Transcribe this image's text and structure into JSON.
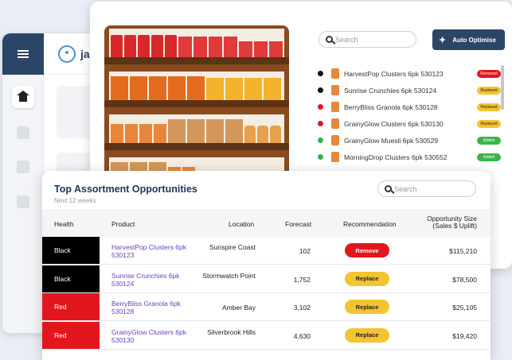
{
  "background_app": {
    "brand": "jal"
  },
  "shelf_panel": {
    "search_placeholder": "Search",
    "auto_optimise_label": "Auto Optimise",
    "products": [
      {
        "name": "HarvestPop Clusters 6pk 530123",
        "status_color": "#111111",
        "tag": "Removed",
        "tag_color": "#e3161d",
        "tag_text_color": "#ffffff"
      },
      {
        "name": "Sunrise Crunchies 6pk 530124",
        "status_color": "#111111",
        "tag": "Replaced",
        "tag_color": "#f4c430",
        "tag_text_color": "#222222"
      },
      {
        "name": "BerryBliss Granola 6pk 530128",
        "status_color": "#e3161d",
        "tag": "Replaced",
        "tag_color": "#f4c430",
        "tag_text_color": "#222222"
      },
      {
        "name": "GrainyGlow Clusters 6pk 530130",
        "status_color": "#e3161d",
        "tag": "Replaced",
        "tag_color": "#f4c430",
        "tag_text_color": "#222222"
      },
      {
        "name": "GrainyGlow Muesli 6pk 530529",
        "status_color": "#2fb44a",
        "tag": "Added",
        "tag_color": "#39b54a",
        "tag_text_color": "#ffffff"
      },
      {
        "name": "MorningDrop Clusters 6pk 530552",
        "status_color": "#2fb44a",
        "tag": "Added",
        "tag_color": "#39b54a",
        "tag_text_color": "#ffffff"
      }
    ]
  },
  "opportunities": {
    "title": "Top Assortment Opportunities",
    "subtitle": "Next 12 weeks",
    "search_placeholder": "Search",
    "columns": {
      "health": "Health",
      "product": "Product",
      "location": "Location",
      "forecast": "Forecast",
      "recommendation": "Recommendation",
      "opportunity_l1": "Opportunity Size",
      "opportunity_l2": "(Sales $ Uplift)"
    },
    "rows": [
      {
        "health": "Black",
        "health_color": "#000000",
        "product": "HarvestPop Clusters 6pk 530123",
        "location": "Sunspire Coast",
        "forecast": "102",
        "recommendation": "Remove",
        "rec_color": "#e3161d",
        "rec_text_color": "#ffffff",
        "opportunity": "$115,210"
      },
      {
        "health": "Black",
        "health_color": "#000000",
        "product": "Sunrise Crunchies 6pk 530124",
        "location": "Stormwatch Point",
        "forecast": "1,752",
        "recommendation": "Replace",
        "rec_color": "#f4c430",
        "rec_text_color": "#222222",
        "opportunity": "$78,500"
      },
      {
        "health": "Red",
        "health_color": "#e3161d",
        "product": "BerryBliss Granola 6pk 530128",
        "location": "Amber Bay",
        "forecast": "3,102",
        "recommendation": "Replace",
        "rec_color": "#f4c430",
        "rec_text_color": "#222222",
        "opportunity": "$25,105"
      },
      {
        "health": "Red",
        "health_color": "#e3161d",
        "product": "GrainyGlow Clusters 6pk 530130",
        "location": "Silverbrook Hills",
        "forecast": "4,630",
        "recommendation": "Replace",
        "rec_color": "#f4c430",
        "rec_text_color": "#222222",
        "opportunity": "$19,420"
      }
    ]
  }
}
